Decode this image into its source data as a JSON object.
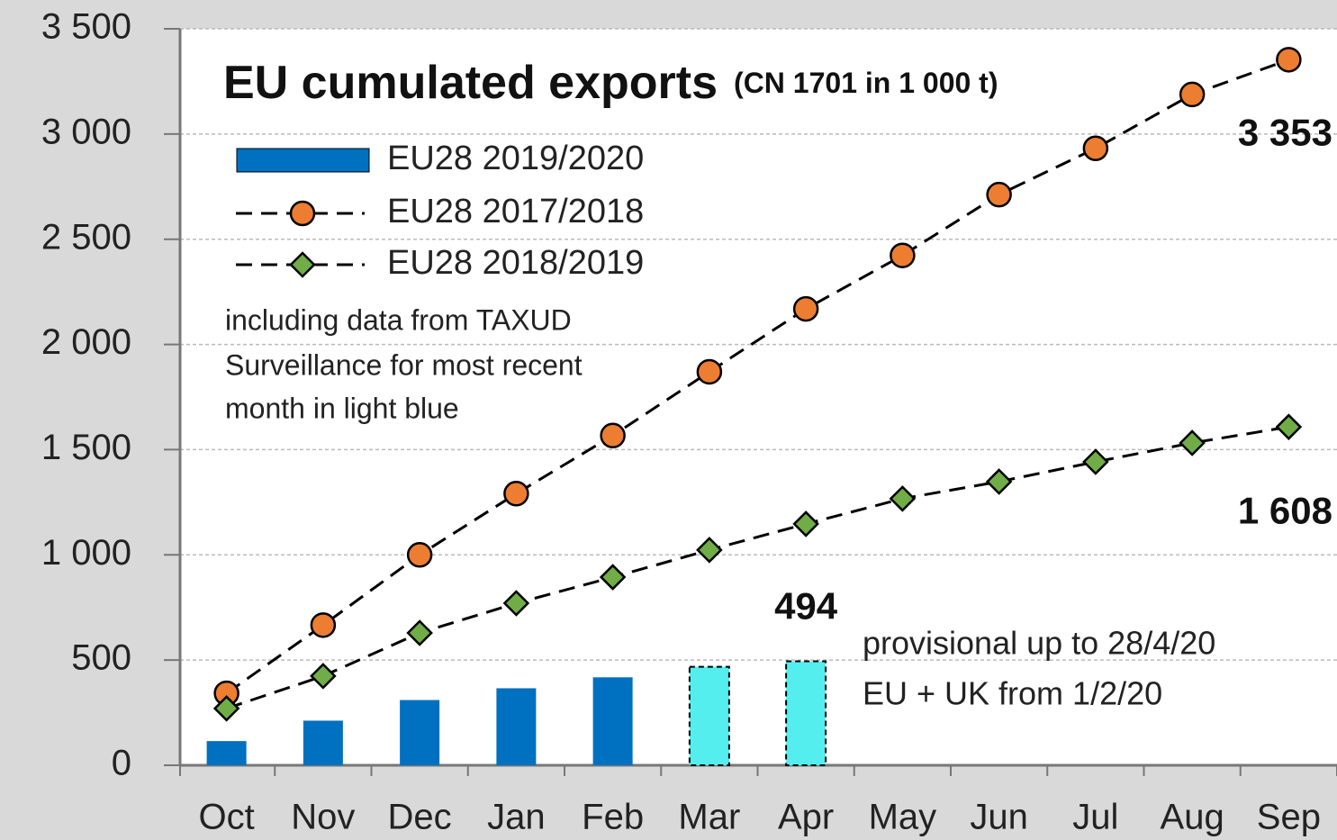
{
  "chart_data": {
    "type": "bar-line",
    "title": "EU cumulated exports",
    "subtitle": "(CN 1701 in 1 000 t)",
    "categories": [
      "Oct",
      "Nov",
      "Dec",
      "Jan",
      "Feb",
      "Mar",
      "Apr",
      "May",
      "Jun",
      "Jul",
      "Aug",
      "Sep"
    ],
    "series": [
      {
        "name": "EU28  2019/2020",
        "type": "bar",
        "color": "#0070c0",
        "colors": [
          "#0070c0",
          "#0070c0",
          "#0070c0",
          "#0070c0",
          "#0070c0",
          "#55eeee",
          "#55eeee",
          null,
          null,
          null,
          null,
          null
        ],
        "values": [
          115,
          212,
          310,
          366,
          418,
          468,
          494,
          null,
          null,
          null,
          null,
          null
        ],
        "value_labels": [
          null,
          null,
          null,
          null,
          null,
          null,
          "494",
          null,
          null,
          null,
          null,
          null
        ]
      },
      {
        "name": "EU28  2017/2018",
        "type": "line",
        "marker": "circle",
        "color": "#ed7d31",
        "values": [
          342,
          666,
          1000,
          1291,
          1567,
          1870,
          2169,
          2423,
          2712,
          2932,
          3188,
          3353
        ],
        "value_labels": [
          null,
          null,
          null,
          null,
          null,
          null,
          null,
          null,
          null,
          null,
          null,
          "3 353"
        ]
      },
      {
        "name": "EU28  2018/2019",
        "type": "line",
        "marker": "diamond",
        "color": "#70ad47",
        "values": [
          270,
          424,
          629,
          770,
          894,
          1023,
          1147,
          1267,
          1348,
          1442,
          1532,
          1608
        ],
        "value_labels": [
          null,
          null,
          null,
          null,
          null,
          null,
          null,
          null,
          null,
          null,
          null,
          "1 608"
        ]
      }
    ],
    "ylim": [
      0,
      3500
    ],
    "yticks": [
      0,
      500,
      {
        "value": 1000,
        "label": "1 000"
      },
      {
        "value": 1500,
        "label": "1 500"
      },
      {
        "value": 2000,
        "label": "2 000"
      },
      {
        "value": 2500,
        "label": "2 500"
      },
      {
        "value": 3000,
        "label": "3 000"
      },
      {
        "value": 3500,
        "label": "3 500"
      }
    ],
    "grid": true,
    "annotations": [
      "including data from TAXUD",
      "Surveillance for most recent",
      "month in light blue",
      "provisional up to 28/4/20",
      "EU + UK from 1/2/20"
    ]
  }
}
